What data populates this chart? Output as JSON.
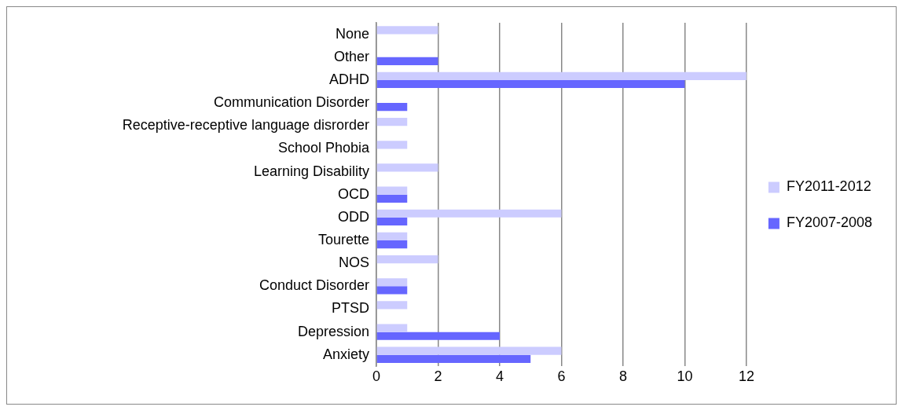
{
  "chart_data": {
    "type": "bar",
    "orientation": "horizontal",
    "categories": [
      "None",
      "Other",
      "ADHD",
      "Communication Disorder",
      "Receptive-receptive language disrorder",
      "School Phobia",
      "Learning Disability",
      "OCD",
      "ODD",
      "Tourette",
      "NOS",
      "Conduct Disorder",
      "PTSD",
      "Depression",
      "Anxiety"
    ],
    "series": [
      {
        "name": "FY2011-2012",
        "color": "#ccccff",
        "values": [
          2,
          null,
          12,
          null,
          1,
          1,
          2,
          1,
          6,
          1,
          2,
          1,
          1,
          1,
          6
        ]
      },
      {
        "name": "FY2007-2008",
        "color": "#6666ff",
        "values": [
          null,
          2,
          10,
          1,
          null,
          null,
          null,
          1,
          1,
          1,
          null,
          1,
          null,
          4,
          5
        ]
      }
    ],
    "xlim": [
      0,
      12
    ],
    "xticks": [
      0,
      2,
      4,
      6,
      8,
      10,
      12
    ],
    "grid": "x",
    "legend": "right"
  }
}
